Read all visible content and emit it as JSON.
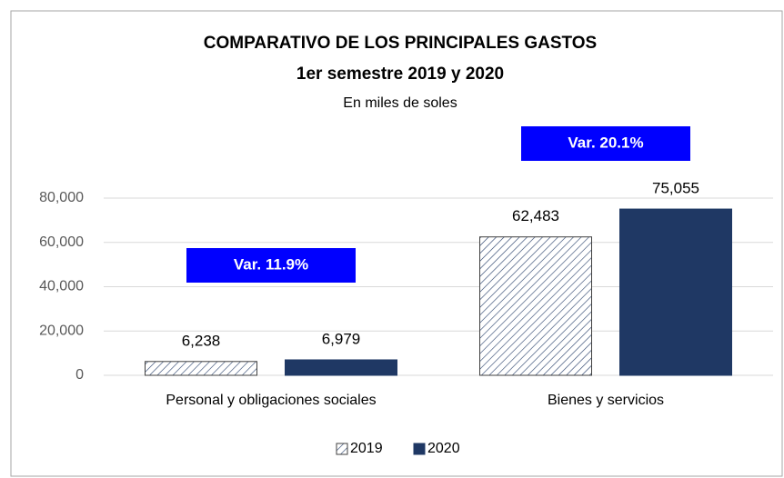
{
  "chart_data": {
    "type": "bar",
    "title": "COMPARATIVO  DE LOS PRINCIPALES  GASTOS",
    "subtitle": "1er semestre 2019 y 2020",
    "units": "En miles de soles",
    "categories": [
      "Personal y obligaciones sociales",
      "Bienes y servicios"
    ],
    "series": [
      {
        "name": "2019",
        "color": "#1f3864",
        "pattern": "hatch",
        "values": [
          6238,
          62483
        ],
        "value_labels": [
          "6,238",
          "62,483"
        ]
      },
      {
        "name": "2020",
        "color": "#1f3864",
        "values": [
          6979,
          75055
        ],
        "value_labels": [
          "6,979",
          "75,055"
        ]
      }
    ],
    "annotations": [
      "Var. 11.9%",
      "Var. 20.1%"
    ],
    "annotation_color": "#0000ff",
    "ylim": [
      0,
      80000
    ],
    "yticks": [
      0,
      {
        "value": 20000,
        "label": "20,000"
      },
      {
        "value": 40000,
        "label": "40,000"
      },
      {
        "value": 60000,
        "label": "60,000"
      },
      {
        "value": 80000,
        "label": "80,000"
      }
    ],
    "grid": true,
    "legend": "bottom"
  }
}
